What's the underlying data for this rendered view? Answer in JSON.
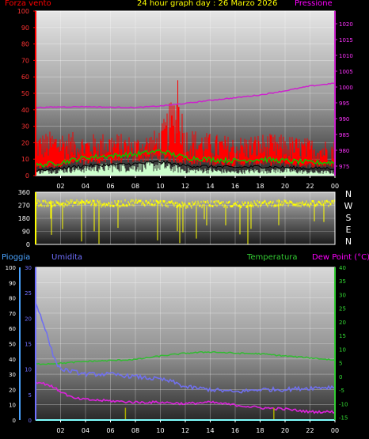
{
  "header": {
    "wind_title": "Forza vento",
    "graph_title": "24 hour graph day : 26 Marzo 2026",
    "pressure_title": "Pressione"
  },
  "lower_header": {
    "rain_title": "Pioggia",
    "humidity_title": "Umidita",
    "temperature_title": "Temperatura",
    "dewpoint_title": "Dew Point (°C)"
  },
  "colors": {
    "wind": "#ff0000",
    "gust": "#ff0000",
    "wind_avg": "#00cc00",
    "wind_min": "#ccffcc",
    "pressure": "#cc22cc",
    "direction": "#ffff00",
    "humidity": "#7070ee",
    "temperature": "#33bb33",
    "dewpoint": "#dd22dd",
    "rain": "#00ffff",
    "rain_rate": "#aaaa00",
    "grid": "#ffffff"
  },
  "chart_data": [
    {
      "type": "line",
      "name": "wind-pressure",
      "x_ticks": [
        "02",
        "04",
        "06",
        "08",
        "10",
        "12",
        "14",
        "16",
        "18",
        "20",
        "22",
        "00"
      ],
      "xlim": [
        0,
        24
      ],
      "left_axis": {
        "ticks": [
          0,
          10,
          20,
          30,
          40,
          50,
          60,
          70,
          80,
          90,
          100
        ],
        "ylim": [
          0,
          100
        ],
        "color": "#ff0000"
      },
      "right_axis": {
        "ticks": [
          975,
          980,
          985,
          990,
          995,
          1000,
          1005,
          1010,
          1015,
          1020
        ],
        "ylim": [
          972,
          1024
        ],
        "color": "#cc22cc"
      },
      "series": [
        {
          "key": "wind_gust",
          "x": [
            0,
            2,
            4,
            6,
            8,
            10,
            11.4,
            12,
            14,
            16,
            18,
            20,
            22,
            24
          ],
          "y": [
            26,
            28,
            25,
            27,
            24,
            29,
            58,
            30,
            26,
            24,
            26,
            25,
            23,
            22
          ],
          "axis": "left",
          "color": "#ff0000"
        },
        {
          "key": "wind_avg",
          "x": [
            0,
            2,
            4,
            6,
            8,
            10,
            12,
            14,
            16,
            18,
            20,
            22,
            24
          ],
          "y": [
            6,
            8,
            11,
            12,
            13,
            15,
            11,
            10,
            9,
            10,
            9,
            8,
            8
          ],
          "axis": "left",
          "color": "#00cc00"
        },
        {
          "key": "wind_min",
          "x": [
            0,
            2,
            4,
            6,
            8,
            10,
            12,
            14,
            16,
            18,
            20,
            22,
            24
          ],
          "y": [
            2,
            3,
            4,
            5,
            5,
            6,
            3,
            3,
            2,
            3,
            3,
            2,
            2
          ],
          "axis": "left",
          "color": "#ccffcc"
        },
        {
          "key": "pressure",
          "x": [
            0,
            1,
            2,
            4,
            6,
            8,
            10,
            12,
            14,
            16,
            18,
            20,
            22,
            24
          ],
          "y": [
            993.5,
            993.6,
            993.7,
            993.8,
            993.6,
            993.5,
            994.0,
            994.8,
            995.8,
            996.6,
            997.5,
            998.8,
            1000.3,
            1001.2
          ],
          "axis": "right",
          "color": "#cc22cc"
        }
      ]
    },
    {
      "type": "scatter",
      "name": "wind-direction",
      "x_ticks": [
        "02",
        "04",
        "06",
        "08",
        "10",
        "12",
        "14",
        "16",
        "18",
        "20",
        "22",
        "00"
      ],
      "xlim": [
        0,
        24
      ],
      "left_axis": {
        "ticks": [
          0,
          90,
          180,
          270,
          360
        ],
        "ylim": [
          0,
          360
        ]
      },
      "right_labels": [
        "N",
        "W",
        "S",
        "E",
        "N"
      ],
      "series": [
        {
          "key": "direction",
          "x": [
            0,
            2,
            4,
            6,
            8,
            10,
            12,
            14,
            16,
            18,
            20,
            22,
            24
          ],
          "y": [
            285,
            280,
            290,
            275,
            290,
            285,
            270,
            280,
            275,
            280,
            285,
            278,
            282
          ],
          "color": "#ffff00"
        }
      ]
    },
    {
      "type": "line",
      "name": "humidity-temperature",
      "x_ticks": [
        "02",
        "04",
        "06",
        "08",
        "10",
        "12",
        "14",
        "16",
        "18",
        "20",
        "22",
        "00"
      ],
      "xlim": [
        0,
        24
      ],
      "rain_axis": {
        "ticks": [
          0,
          10,
          20,
          30,
          40,
          50,
          60,
          70,
          80,
          90,
          100
        ],
        "ylim": [
          0,
          100
        ]
      },
      "humidity_axis": {
        "ticks": [
          0,
          5,
          10,
          15,
          20,
          25,
          30
        ],
        "ylim": [
          0,
          30
        ]
      },
      "temp_axis": {
        "ticks": [
          40,
          35,
          30,
          25,
          20,
          15,
          10,
          5,
          0,
          -5,
          -10,
          -15
        ],
        "ylim": [
          -16,
          40
        ]
      },
      "series": [
        {
          "key": "humidity",
          "x": [
            0,
            0.5,
            1,
            1.5,
            2,
            3,
            4,
            6,
            8,
            10,
            11,
            12,
            14,
            16,
            18,
            20,
            22,
            24
          ],
          "y": [
            23,
            20,
            16,
            12,
            10,
            9.5,
            9,
            9,
            8.5,
            8,
            7.5,
            6.5,
            6,
            5.5,
            6,
            6,
            6.3,
            6.5
          ],
          "axis": "humidity",
          "color": "#7070ee"
        },
        {
          "key": "temperature",
          "x": [
            0,
            2,
            4,
            6,
            8,
            10,
            12,
            14,
            16,
            18,
            20,
            22,
            24
          ],
          "y": [
            4.5,
            4.8,
            5.5,
            5.8,
            6.2,
            7.5,
            8.5,
            9,
            8.5,
            8.3,
            7.5,
            6.8,
            6
          ],
          "axis": "temp",
          "color": "#33bb33"
        },
        {
          "key": "dewpoint",
          "x": [
            0,
            1,
            2,
            3,
            4,
            6,
            8,
            10,
            12,
            14,
            16,
            18,
            20,
            22,
            24
          ],
          "y": [
            -2,
            -3,
            -5.5,
            -8,
            -8.5,
            -9,
            -9.5,
            -9.5,
            -10,
            -9.5,
            -10.5,
            -11.5,
            -12,
            -13,
            -13
          ],
          "axis": "temp",
          "color": "#dd22dd"
        },
        {
          "key": "rain_rate",
          "x": [
            7.2,
            19.1
          ],
          "y": [
            8,
            8
          ],
          "axis": "rain",
          "color": "#aaaa00"
        },
        {
          "key": "rain_total",
          "x": [
            0,
            24
          ],
          "y": [
            0,
            0
          ],
          "axis": "rain",
          "color": "#00ffff"
        }
      ]
    }
  ]
}
